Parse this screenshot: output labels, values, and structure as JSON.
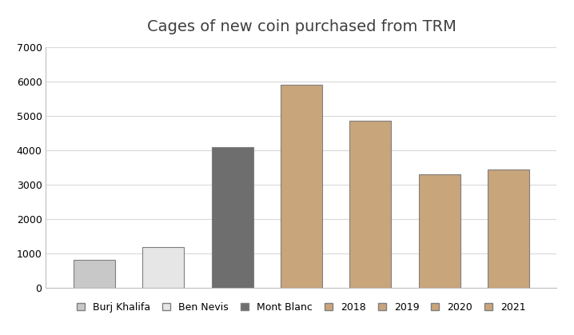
{
  "chart_data": {
    "type": "bar",
    "title": "Cages of new coin purchased from TRM",
    "categories": [
      "Burj Khalifa",
      "Ben Nevis",
      "Mont Blanc",
      "2018",
      "2019",
      "2020",
      "2021"
    ],
    "values": [
      830,
      1200,
      4100,
      5900,
      4850,
      3300,
      3450
    ],
    "colors": [
      "#c8c8c8",
      "#e6e6e6",
      "#6e6e6e",
      "#c9a57b",
      "#c9a57b",
      "#c9a57b",
      "#c9a57b"
    ],
    "ylim": [
      0,
      7000
    ],
    "yticks": [
      0,
      1000,
      2000,
      3000,
      4000,
      5000,
      6000,
      7000
    ],
    "grid": true,
    "legend": "bottom",
    "tick_labels": "y"
  }
}
